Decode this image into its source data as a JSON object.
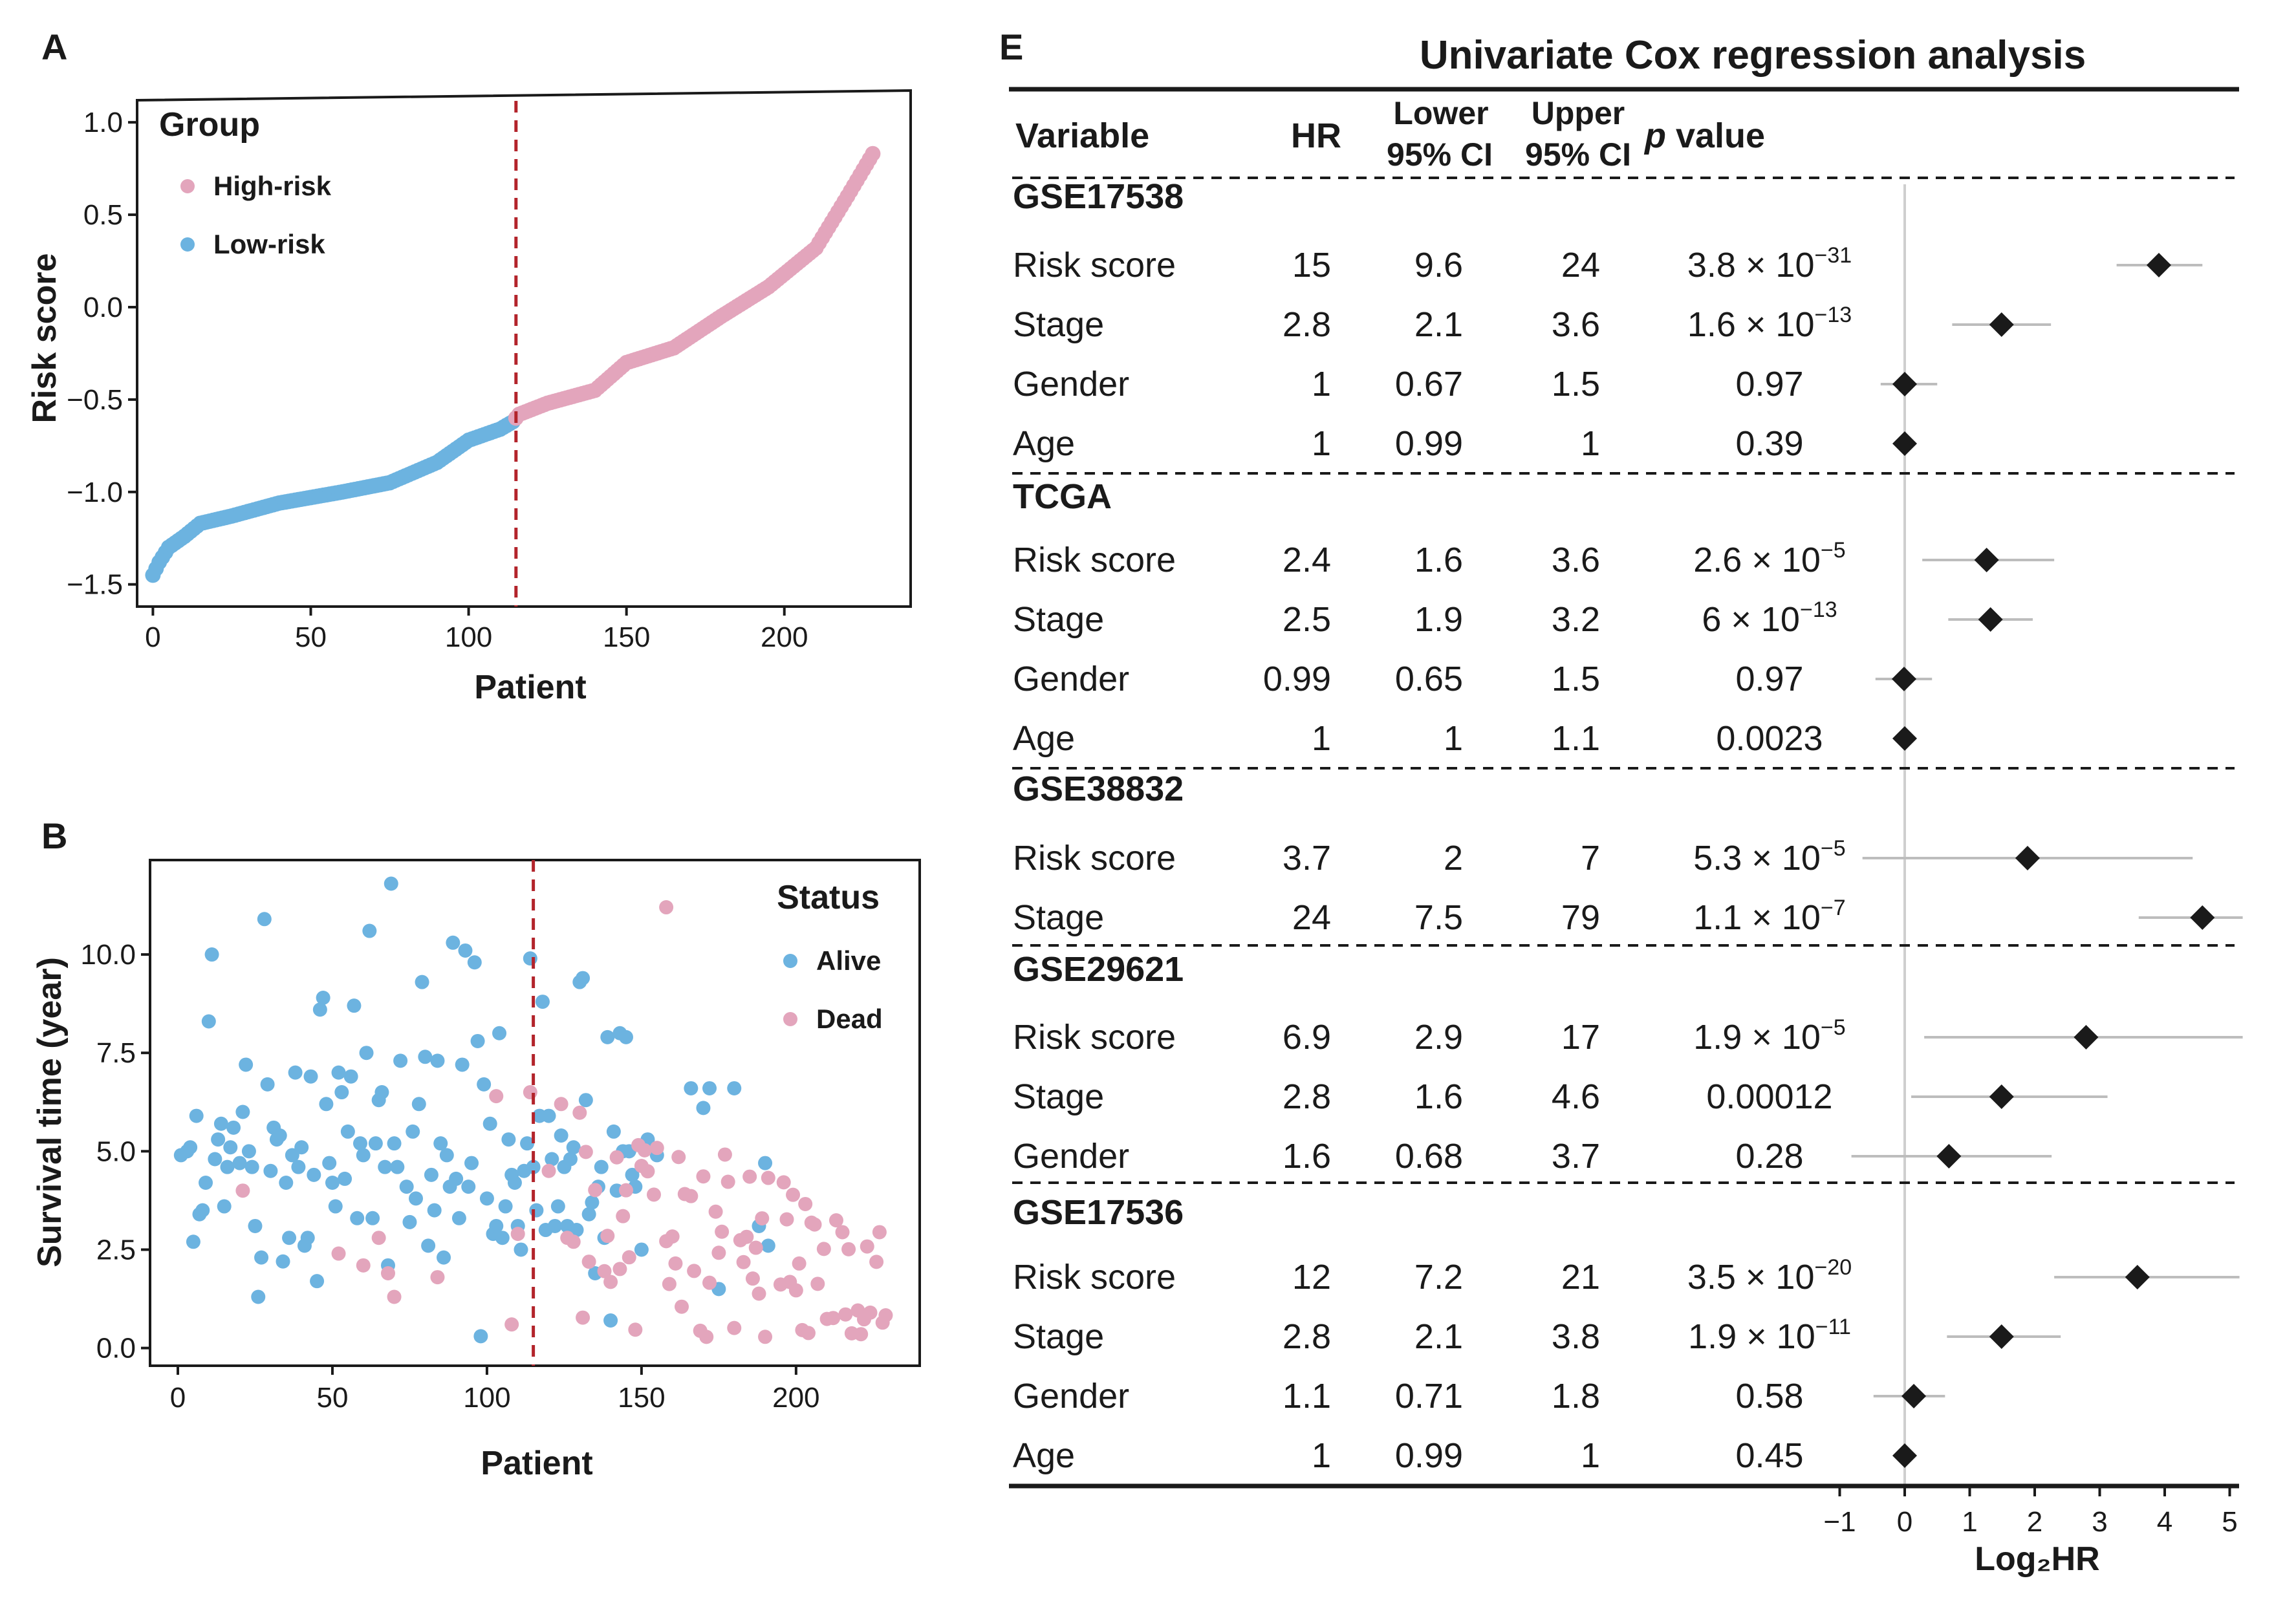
{
  "colors": {
    "high": "#e3a5bc",
    "low": "#6cb3e0",
    "cutoff": "#b3242b",
    "ink": "#1a1a1a",
    "ci": "#bdbdbd",
    "zero": "#cfcfcf"
  },
  "chart_data": [
    {
      "id": "A",
      "type": "scatter",
      "panel_label": "A",
      "xlabel": "Patient",
      "ylabel": "Risk score",
      "xlim": [
        -5,
        240
      ],
      "ylim": [
        -1.62,
        1.13
      ],
      "xticks": [
        0,
        50,
        100,
        150,
        200
      ],
      "yticks": [
        1.0,
        0.5,
        0.0,
        -0.5,
        -1.0,
        -1.5
      ],
      "ytick_labels": [
        "1.0",
        "0.5",
        "0.0",
        "−0.5",
        "−1.0",
        "−1.5"
      ],
      "n_patients": 228,
      "cutoff_index": 115,
      "risk_curve_anchors": [
        [
          0,
          -1.45
        ],
        [
          2,
          -1.38
        ],
        [
          5,
          -1.3
        ],
        [
          10,
          -1.24
        ],
        [
          15,
          -1.17
        ],
        [
          25,
          -1.13
        ],
        [
          40,
          -1.06
        ],
        [
          60,
          -1.0
        ],
        [
          75,
          -0.95
        ],
        [
          90,
          -0.84
        ],
        [
          100,
          -0.72
        ],
        [
          110,
          -0.66
        ],
        [
          114,
          -0.62
        ],
        [
          116,
          -0.58
        ],
        [
          125,
          -0.52
        ],
        [
          140,
          -0.45
        ],
        [
          150,
          -0.3
        ],
        [
          165,
          -0.22
        ],
        [
          180,
          -0.05
        ],
        [
          195,
          0.11
        ],
        [
          210,
          0.32
        ],
        [
          220,
          0.6
        ],
        [
          228,
          0.83
        ]
      ],
      "legend": {
        "title": "Group",
        "items": [
          "High-risk",
          "Low-risk"
        ]
      }
    },
    {
      "id": "B",
      "type": "scatter",
      "panel_label": "B",
      "xlabel": "Patient",
      "ylabel": "Survival time (year)",
      "xlim": [
        -9,
        240
      ],
      "ylim": [
        -0.45,
        12.4
      ],
      "xticks": [
        0,
        50,
        100,
        150,
        200
      ],
      "yticks": [
        10.0,
        7.5,
        5.0,
        2.5,
        0.0
      ],
      "ytick_labels": [
        "10.0",
        "7.5",
        "5.0",
        "2.5",
        "0.0"
      ],
      "cutoff_index": 115,
      "legend": {
        "title": "Status",
        "items": [
          "Alive",
          "Dead"
        ]
      },
      "alive_points": [
        [
          1,
          4.9
        ],
        [
          3,
          5.0
        ],
        [
          4,
          5.1
        ],
        [
          5,
          2.7
        ],
        [
          6,
          5.9
        ],
        [
          7,
          3.4
        ],
        [
          8,
          3.5
        ],
        [
          9,
          4.2
        ],
        [
          10,
          8.3
        ],
        [
          11,
          10.0
        ],
        [
          12,
          4.8
        ],
        [
          13,
          5.3
        ],
        [
          14,
          5.7
        ],
        [
          15,
          3.6
        ],
        [
          16,
          4.6
        ],
        [
          17,
          5.1
        ],
        [
          18,
          5.6
        ],
        [
          20,
          4.7
        ],
        [
          21,
          6.0
        ],
        [
          22,
          7.2
        ],
        [
          23,
          5.0
        ],
        [
          24,
          4.6
        ],
        [
          25,
          3.1
        ],
        [
          26,
          1.3
        ],
        [
          27,
          2.3
        ],
        [
          28,
          10.9
        ],
        [
          29,
          6.7
        ],
        [
          30,
          4.5
        ],
        [
          31,
          5.6
        ],
        [
          32,
          5.3
        ],
        [
          33,
          5.4
        ],
        [
          34,
          2.2
        ],
        [
          35,
          4.2
        ],
        [
          36,
          2.8
        ],
        [
          37,
          4.9
        ],
        [
          38,
          7.0
        ],
        [
          39,
          4.6
        ],
        [
          40,
          5.1
        ],
        [
          41,
          2.6
        ],
        [
          42,
          2.8
        ],
        [
          43,
          6.9
        ],
        [
          44,
          4.4
        ],
        [
          45,
          1.7
        ],
        [
          46,
          8.6
        ],
        [
          47,
          8.9
        ],
        [
          48,
          6.2
        ],
        [
          49,
          4.7
        ],
        [
          50,
          4.2
        ],
        [
          51,
          3.6
        ],
        [
          52,
          7.0
        ],
        [
          53,
          6.5
        ],
        [
          54,
          4.3
        ],
        [
          55,
          5.5
        ],
        [
          56,
          6.9
        ],
        [
          57,
          8.7
        ],
        [
          58,
          3.3
        ],
        [
          59,
          5.2
        ],
        [
          60,
          4.9
        ],
        [
          61,
          7.5
        ],
        [
          62,
          10.6
        ],
        [
          63,
          3.3
        ],
        [
          64,
          5.2
        ],
        [
          65,
          6.3
        ],
        [
          66,
          6.5
        ],
        [
          67,
          4.6
        ],
        [
          68,
          2.1
        ],
        [
          69,
          11.8
        ],
        [
          70,
          5.2
        ],
        [
          71,
          4.6
        ],
        [
          72,
          7.3
        ],
        [
          74,
          4.1
        ],
        [
          75,
          3.2
        ],
        [
          76,
          5.5
        ],
        [
          77,
          3.8
        ],
        [
          78,
          6.2
        ],
        [
          79,
          9.3
        ],
        [
          80,
          7.4
        ],
        [
          81,
          2.6
        ],
        [
          82,
          4.4
        ],
        [
          83,
          3.5
        ],
        [
          84,
          7.3
        ],
        [
          85,
          5.2
        ],
        [
          86,
          2.3
        ],
        [
          87,
          4.9
        ],
        [
          88,
          4.1
        ],
        [
          89,
          10.3
        ],
        [
          90,
          4.3
        ],
        [
          91,
          3.3
        ],
        [
          92,
          7.2
        ],
        [
          93,
          10.1
        ],
        [
          94,
          4.1
        ],
        [
          95,
          4.7
        ],
        [
          96,
          9.8
        ],
        [
          97,
          7.8
        ],
        [
          98,
          0.3
        ],
        [
          99,
          6.7
        ],
        [
          100,
          3.8
        ],
        [
          101,
          5.7
        ],
        [
          102,
          2.9
        ],
        [
          103,
          3.1
        ],
        [
          104,
          8.0
        ],
        [
          105,
          2.8
        ],
        [
          106,
          3.6
        ],
        [
          107,
          5.3
        ],
        [
          108,
          4.4
        ],
        [
          109,
          4.2
        ],
        [
          110,
          3.1
        ],
        [
          111,
          2.5
        ],
        [
          112,
          4.5
        ],
        [
          113,
          5.2
        ],
        [
          114,
          9.9
        ],
        [
          115,
          4.6
        ],
        [
          116,
          3.5
        ],
        [
          117,
          5.9
        ],
        [
          118,
          8.8
        ],
        [
          119,
          3.0
        ],
        [
          120,
          5.9
        ],
        [
          121,
          4.8
        ],
        [
          122,
          3.1
        ],
        [
          123,
          3.6
        ],
        [
          124,
          5.4
        ],
        [
          125,
          4.6
        ],
        [
          126,
          3.1
        ],
        [
          127,
          4.8
        ],
        [
          128,
          5.1
        ],
        [
          129,
          3.0
        ],
        [
          130,
          9.3
        ],
        [
          131,
          9.4
        ],
        [
          132,
          6.3
        ],
        [
          133,
          3.4
        ],
        [
          134,
          3.7
        ],
        [
          135,
          1.9
        ],
        [
          136,
          4.1
        ],
        [
          137,
          4.6
        ],
        [
          138,
          2.8
        ],
        [
          139,
          7.9
        ],
        [
          140,
          0.7
        ],
        [
          141,
          5.5
        ],
        [
          142,
          4.0
        ],
        [
          143,
          8.0
        ],
        [
          144,
          5.0
        ],
        [
          145,
          7.9
        ],
        [
          146,
          5.0
        ],
        [
          147,
          4.4
        ],
        [
          148,
          4.1
        ],
        [
          150,
          2.5
        ],
        [
          152,
          5.3
        ],
        [
          155,
          4.9
        ],
        [
          166,
          6.6
        ],
        [
          170,
          6.1
        ],
        [
          172,
          6.6
        ],
        [
          175,
          1.5
        ],
        [
          180,
          6.6
        ],
        [
          188,
          3.1
        ],
        [
          190,
          4.7
        ],
        [
          191,
          2.6
        ]
      ]
    },
    {
      "id": "E",
      "type": "table",
      "panel_label": "E",
      "title": "Univariate Cox regression analysis",
      "columns": [
        "Variable",
        "HR",
        "Lower\n95% CI",
        "Upper\n95% CI",
        "p value"
      ],
      "header_variable": "Variable",
      "header_hr": "HR",
      "header_lower_1": "Lower",
      "header_lower_2": "95% CI",
      "header_upper_1": "Upper",
      "header_upper_2": "95% CI",
      "header_p_italic": "p",
      "header_p_rest": " value",
      "xlabel": "Log₂HR",
      "xlim": [
        -1.2,
        5.2
      ],
      "xticks": [
        -1,
        0,
        1,
        2,
        3,
        4,
        5
      ],
      "xtick_labels": [
        "−1",
        "0",
        "1",
        "2",
        "3",
        "4",
        "5"
      ],
      "groups": [
        {
          "name": "GSE17538",
          "rows": [
            {
              "variable": "Risk score",
              "hr": "15",
              "lower": "9.6",
              "upper": "24",
              "p_base": "3.8 × 10",
              "p_exp": "−31",
              "log2hr": 3.91,
              "ci_low": 3.26,
              "ci_high": 4.58
            },
            {
              "variable": "Stage",
              "hr": "2.8",
              "lower": "2.1",
              "upper": "3.6",
              "p_base": "1.6 × 10",
              "p_exp": "−13",
              "log2hr": 1.49,
              "ci_low": 0.73,
              "ci_high": 2.25
            },
            {
              "variable": "Gender",
              "hr": "1",
              "lower": "0.67",
              "upper": "1.5",
              "p_base": "0.97",
              "p_exp": "",
              "log2hr": 0.0,
              "ci_low": -0.37,
              "ci_high": 0.5
            },
            {
              "variable": "Age",
              "hr": "1",
              "lower": "0.99",
              "upper": "1",
              "p_base": "0.39",
              "p_exp": "",
              "log2hr": 0.0,
              "ci_low": -0.02,
              "ci_high": 0.0
            }
          ]
        },
        {
          "name": "TCGA",
          "rows": [
            {
              "variable": "Risk score",
              "hr": "2.4",
              "lower": "1.6",
              "upper": "3.6",
              "p_base": "2.6 × 10",
              "p_exp": "−5",
              "log2hr": 1.26,
              "ci_low": 0.27,
              "ci_high": 2.3
            },
            {
              "variable": "Stage",
              "hr": "2.5",
              "lower": "1.9",
              "upper": "3.2",
              "p_base": "6 × 10",
              "p_exp": "−13",
              "log2hr": 1.32,
              "ci_low": 0.67,
              "ci_high": 1.97
            },
            {
              "variable": "Gender",
              "hr": "0.99",
              "lower": "0.65",
              "upper": "1.5",
              "p_base": "0.97",
              "p_exp": "",
              "log2hr": -0.01,
              "ci_low": -0.45,
              "ci_high": 0.42
            },
            {
              "variable": "Age",
              "hr": "1",
              "lower": "1",
              "upper": "1.1",
              "p_base": "0.0023",
              "p_exp": "",
              "log2hr": 0.0,
              "ci_low": 0.0,
              "ci_high": 0.06
            }
          ]
        },
        {
          "name": "GSE38832",
          "rows": [
            {
              "variable": "Risk score",
              "hr": "3.7",
              "lower": "2",
              "upper": "7",
              "p_base": "5.3 × 10",
              "p_exp": "−5",
              "log2hr": 1.89,
              "ci_low": -0.65,
              "ci_high": 4.43
            },
            {
              "variable": "Stage",
              "hr": "24",
              "lower": "7.5",
              "upper": "79",
              "p_base": "1.1 × 10",
              "p_exp": "−7",
              "log2hr": 4.58,
              "ci_low": 3.6,
              "ci_high": 5.2
            }
          ]
        },
        {
          "name": "GSE29621",
          "rows": [
            {
              "variable": "Risk score",
              "hr": "6.9",
              "lower": "2.9",
              "upper": "17",
              "p_base": "1.9 × 10",
              "p_exp": "−5",
              "log2hr": 2.79,
              "ci_low": 0.3,
              "ci_high": 5.2
            },
            {
              "variable": "Stage",
              "hr": "2.8",
              "lower": "1.6",
              "upper": "4.6",
              "p_base": "0.00012",
              "p_exp": "",
              "log2hr": 1.49,
              "ci_low": 0.1,
              "ci_high": 3.12
            },
            {
              "variable": "Gender",
              "hr": "1.6",
              "lower": "0.68",
              "upper": "3.7",
              "p_base": "0.28",
              "p_exp": "",
              "log2hr": 0.68,
              "ci_low": -0.82,
              "ci_high": 2.26
            }
          ]
        },
        {
          "name": "GSE17536",
          "rows": [
            {
              "variable": "Risk score",
              "hr": "12",
              "lower": "7.2",
              "upper": "21",
              "p_base": "3.5 × 10",
              "p_exp": "−20",
              "log2hr": 3.58,
              "ci_low": 2.3,
              "ci_high": 5.15
            },
            {
              "variable": "Stage",
              "hr": "2.8",
              "lower": "2.1",
              "upper": "3.8",
              "p_base": "1.9 × 10",
              "p_exp": "−11",
              "log2hr": 1.49,
              "ci_low": 0.65,
              "ci_high": 2.4
            },
            {
              "variable": "Gender",
              "hr": "1.1",
              "lower": "0.71",
              "upper": "1.8",
              "p_base": "0.58",
              "p_exp": "",
              "log2hr": 0.14,
              "ci_low": -0.48,
              "ci_high": 0.62
            },
            {
              "variable": "Age",
              "hr": "1",
              "lower": "0.99",
              "upper": "1",
              "p_base": "0.45",
              "p_exp": "",
              "log2hr": 0.0,
              "ci_low": -0.02,
              "ci_high": 0.01
            }
          ]
        }
      ]
    }
  ]
}
